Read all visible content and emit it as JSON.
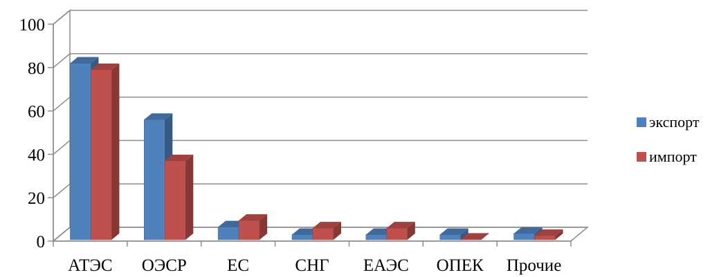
{
  "chart_data": {
    "type": "bar",
    "categories": [
      "АТЭС",
      "ОЭСР",
      "ЕС",
      "СНГ",
      "ЕАЭС",
      "ОПЕК",
      "Прочие"
    ],
    "series": [
      {
        "name": "экспорт",
        "values": [
          82,
          56,
          6.5,
          3,
          3,
          3,
          3.5
        ],
        "color": "#4F81BD"
      },
      {
        "name": "импорт",
        "values": [
          79,
          37,
          9.5,
          6,
          6,
          0.8,
          2.5
        ],
        "color": "#C0504D"
      }
    ],
    "yticks": [
      "0",
      "20",
      "40",
      "60",
      "80",
      "100"
    ],
    "ylim": [
      0,
      100
    ],
    "grid": true,
    "legend_position": "right",
    "style": "3d-clustered-column"
  }
}
